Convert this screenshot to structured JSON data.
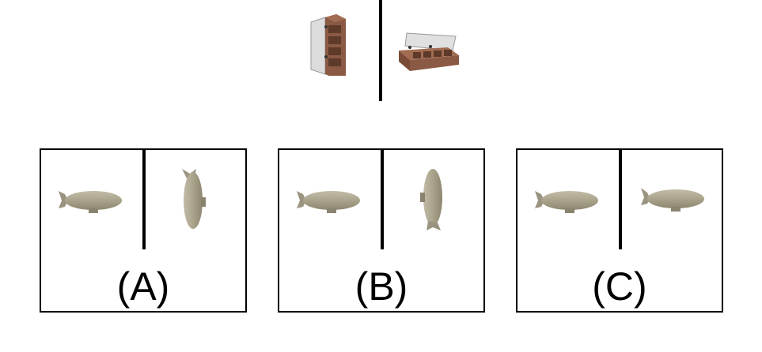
{
  "reference": {
    "left_object": "open-cabinet",
    "right_object": "open-cabinet-rotated"
  },
  "options": [
    {
      "label": "(A)",
      "left_object": "blimp",
      "right_object": "blimp-rotated-vertical-fin-up"
    },
    {
      "label": "(B)",
      "left_object": "blimp",
      "right_object": "blimp-rotated-vertical-fin-down"
    },
    {
      "label": "(C)",
      "left_object": "blimp",
      "right_object": "blimp"
    }
  ],
  "colors": {
    "blimp": "#a8a08a",
    "cabinet_wood": "#8a5a44",
    "cabinet_door": "#d8d8d8",
    "line": "#000000"
  }
}
